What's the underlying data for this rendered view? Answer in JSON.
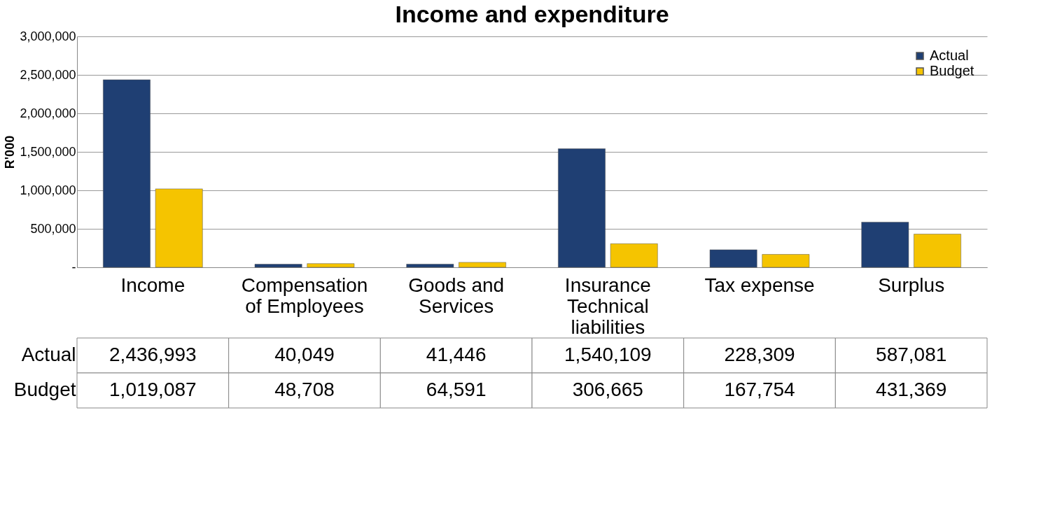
{
  "chart_data": {
    "type": "bar",
    "title": "Income and expenditure",
    "ylabel": "R'000",
    "categories": [
      "Income",
      "Compensation of Employees",
      "Goods and Services",
      "Insurance Technical liabilities",
      "Tax expense",
      "Surplus"
    ],
    "series": [
      {
        "name": "Actual",
        "color": "#1f3f73",
        "values": [
          2436993,
          40049,
          41446,
          1540109,
          228309,
          587081
        ],
        "value_labels": [
          "2,436,993",
          "40,049",
          "41,446",
          "1,540,109",
          "228,309",
          "587,081"
        ]
      },
      {
        "name": "Budget",
        "color": "#f5c400",
        "values": [
          1019087,
          48708,
          64591,
          306665,
          167754,
          431369
        ],
        "value_labels": [
          "1,019,087",
          "48,708",
          "64,591",
          "306,665",
          "167,754",
          "431,369"
        ]
      }
    ],
    "ylim": [
      0,
      3000000
    ],
    "yticks": [
      {
        "value": 0,
        "label": "-"
      },
      {
        "value": 500000,
        "label": "500,000"
      },
      {
        "value": 1000000,
        "label": "1,000,000"
      },
      {
        "value": 1500000,
        "label": "1,500,000"
      },
      {
        "value": 2000000,
        "label": "2,000,000"
      },
      {
        "value": 2500000,
        "label": "2,500,000"
      },
      {
        "value": 3000000,
        "label": "3,000,000"
      }
    ],
    "grid": "y",
    "legend": "top right"
  }
}
